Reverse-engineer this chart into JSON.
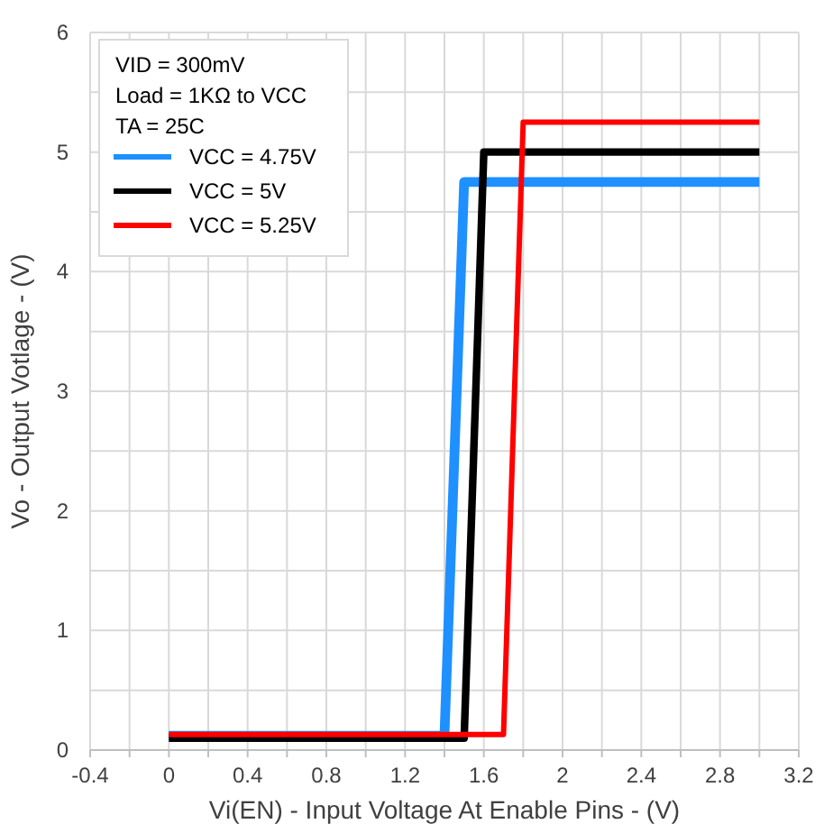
{
  "chart_data": {
    "type": "line",
    "xlabel": "Vi(EN) - Input Voltage At Enable Pins - (V)",
    "ylabel": "Vo - Output Votlage - (V)",
    "annotations": [
      "VID = 300mV",
      "Load = 1KΩ to VCC",
      "TA = 25C"
    ],
    "xlim": [
      -0.4,
      3.2
    ],
    "ylim": [
      0,
      6
    ],
    "xticks": [
      -0.4,
      {
        "value": -0.2,
        "label": null
      },
      0,
      {
        "value": 0.2,
        "label": null
      },
      0.4,
      {
        "value": 0.6,
        "label": null
      },
      0.8,
      {
        "value": 1.0,
        "label": null
      },
      1.2,
      {
        "value": 1.4,
        "label": null
      },
      1.6,
      {
        "value": 1.8,
        "label": null
      },
      2,
      {
        "value": 2.2,
        "label": null
      },
      2.4,
      {
        "value": 2.6,
        "label": null
      },
      2.8,
      {
        "value": 3.0,
        "label": null
      },
      3.2
    ],
    "yticks": [
      0,
      {
        "value": 0.5,
        "label": null
      },
      1,
      {
        "value": 1.5,
        "label": null
      },
      2,
      {
        "value": 2.5,
        "label": null
      },
      3,
      {
        "value": 3.5,
        "label": null
      },
      4,
      {
        "value": 4.5,
        "label": null
      },
      5,
      {
        "value": 5.5,
        "label": null
      },
      6
    ],
    "grid": true,
    "legend": "top left",
    "line_style": "solid",
    "marker": "none",
    "series": [
      {
        "name": "VCC = 4.75V",
        "color": "#1e90ff",
        "x": [
          0,
          1.4,
          1.5,
          3.0
        ],
        "values": [
          0.12,
          0.12,
          4.75,
          4.75
        ]
      },
      {
        "name": "VCC = 5V",
        "color": "#000000",
        "x": [
          0,
          1.5,
          1.6,
          3.0
        ],
        "values": [
          0.1,
          0.1,
          5.0,
          5.0
        ]
      },
      {
        "name": "VCC = 5.25V",
        "color": "#ff0000",
        "x": [
          0,
          1.7,
          1.8,
          3.0
        ],
        "values": [
          0.13,
          0.13,
          5.25,
          5.25
        ]
      }
    ]
  }
}
